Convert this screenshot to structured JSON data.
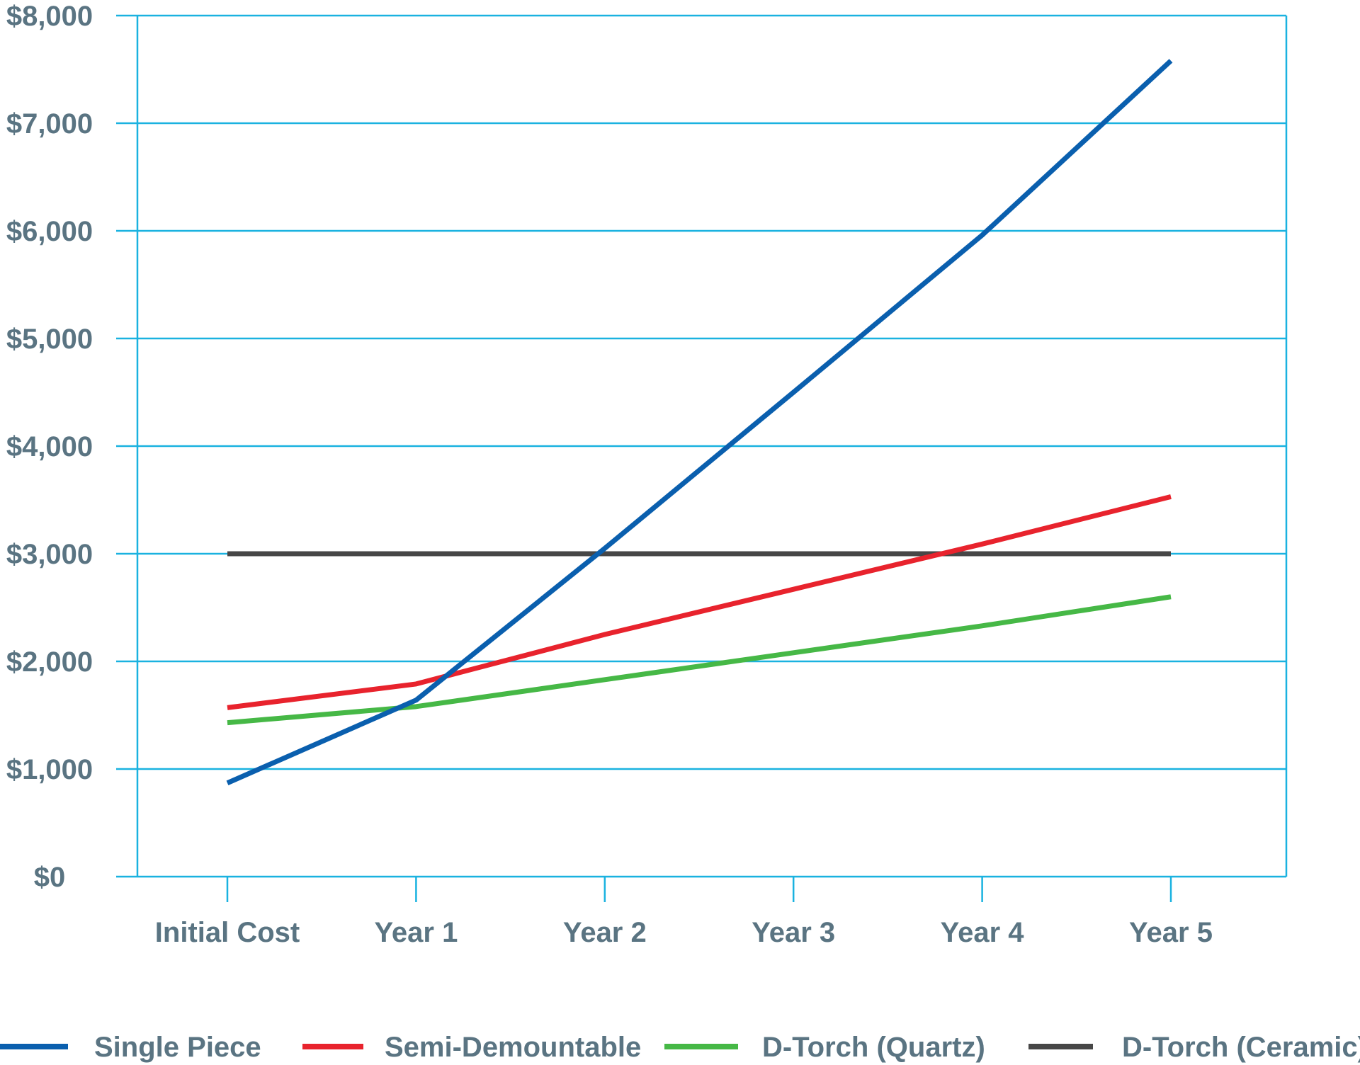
{
  "chart_data": {
    "type": "line",
    "title": "",
    "xlabel": "",
    "ylabel": "",
    "categories": [
      "Initial Cost",
      "Year 1",
      "Year 2",
      "Year 3",
      "Year 4",
      "Year 5"
    ],
    "y_ticks": [
      "$0",
      "$1,000",
      "$2,000",
      "$3,000",
      "$4,000",
      "$5,000",
      "$6,000",
      "$7,000",
      "$8,000"
    ],
    "ylim": [
      0,
      8000
    ],
    "grid": true,
    "legend_position": "bottom",
    "series": [
      {
        "name": "Single Piece",
        "color": "#0a5fae",
        "values": [
          870,
          1640,
          3050,
          4500,
          5960,
          7580
        ]
      },
      {
        "name": "Semi-Demountable",
        "color": "#e8232d",
        "values": [
          1570,
          1790,
          2250,
          2670,
          3090,
          3530
        ]
      },
      {
        "name": "D-Torch (Quartz)",
        "color": "#46b846",
        "values": [
          1430,
          1580,
          1830,
          2080,
          2330,
          2600
        ]
      },
      {
        "name": "D-Torch (Ceramic)",
        "color": "#474747",
        "values": [
          3000,
          3000,
          3000,
          3000,
          3000,
          3000
        ]
      }
    ],
    "colors": {
      "grid": "#1ab2e0",
      "text": "#5a7482"
    }
  }
}
